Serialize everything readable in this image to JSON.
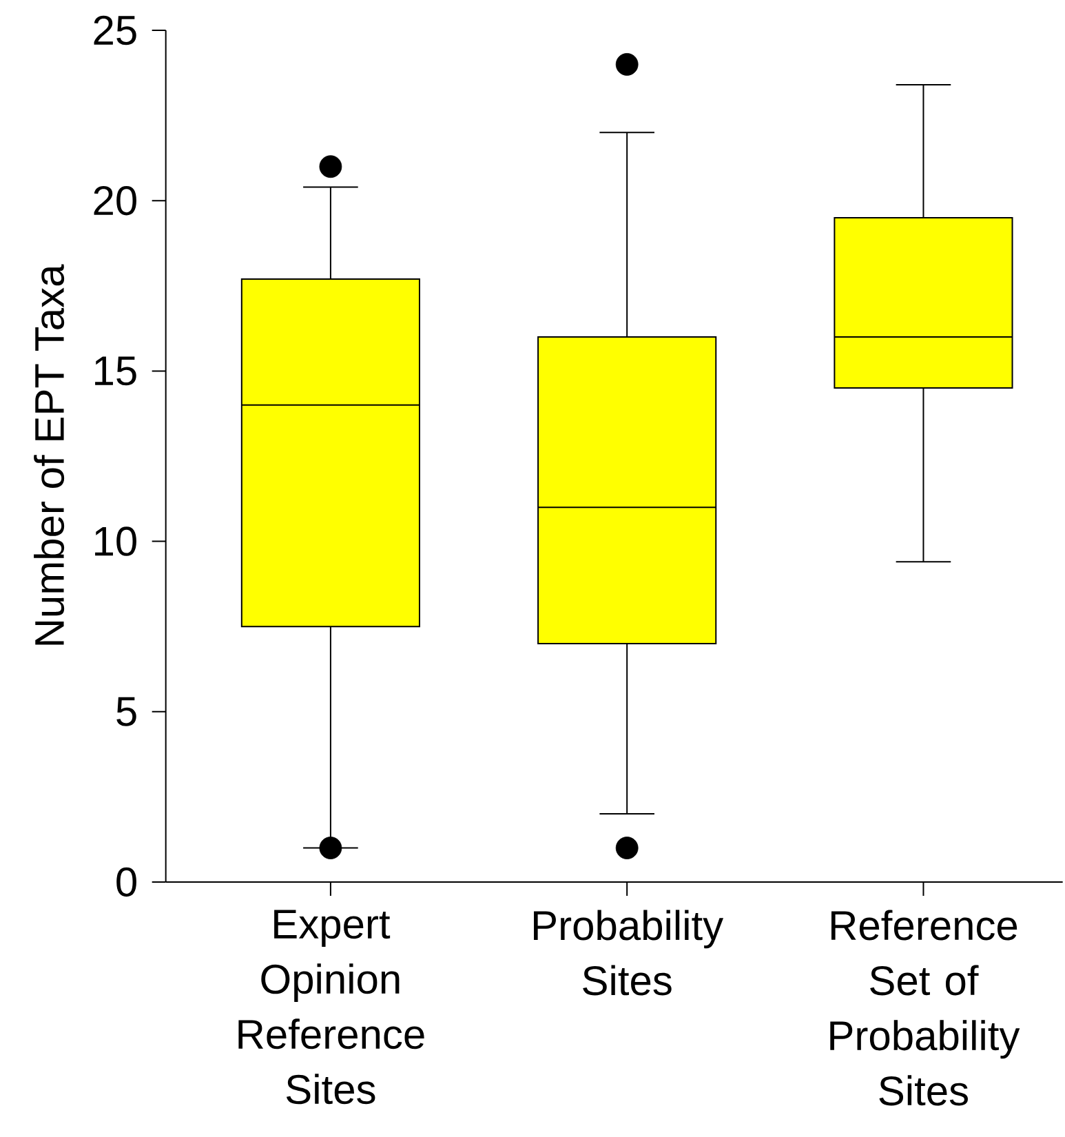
{
  "chart_data": {
    "type": "box",
    "ylabel": "Number of EPT Taxa",
    "categories": [
      "Expert Opinion Reference Sites",
      "Probability Sites",
      "Reference Set of Probability Sites"
    ],
    "series": [
      {
        "color": "#ffff00",
        "boxes": [
          {
            "low": 1.0,
            "q1": 7.5,
            "median": 14.0,
            "q3": 17.7,
            "high": 20.4,
            "outliers": [
              21.0,
              1.0
            ]
          },
          {
            "low": 2.0,
            "q1": 7.0,
            "median": 11.0,
            "q3": 16.0,
            "high": 22.0,
            "outliers": [
              24.0,
              1.0
            ]
          },
          {
            "low": 9.4,
            "q1": 14.5,
            "median": 16.0,
            "q3": 19.5,
            "high": 23.4
          }
        ]
      }
    ],
    "ylim": [
      0,
      25
    ],
    "yticks": [
      0,
      5,
      10,
      15,
      20,
      25
    ],
    "marker": "circle"
  }
}
